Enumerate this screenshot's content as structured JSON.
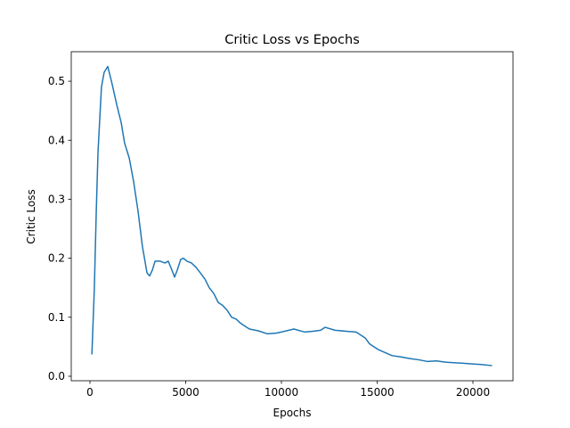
{
  "chart_data": {
    "type": "line",
    "title": "Critic Loss vs Epochs",
    "xlabel": "Epochs",
    "ylabel": "Critic Loss",
    "series": [
      {
        "color": "#1f77b4",
        "x": [
          100,
          230,
          330,
          420,
          600,
          740,
          930,
          1160,
          1400,
          1630,
          1810,
          2050,
          2280,
          2510,
          2740,
          2980,
          3120,
          3260,
          3400,
          3670,
          3910,
          4090,
          4280,
          4420,
          4560,
          4740,
          4880,
          5070,
          5300,
          5530,
          5770,
          6000,
          6230,
          6470,
          6700,
          6930,
          7160,
          7400,
          7630,
          7860,
          8090,
          8330,
          8790,
          9260,
          9720,
          10000,
          10650,
          11200,
          11600,
          12050,
          12280,
          12800,
          13440,
          13900,
          14370,
          14600,
          15070,
          15770,
          16200,
          16700,
          17150,
          17630,
          18100,
          18560,
          19000,
          19490,
          19950,
          20420,
          21000
        ],
        "values": [
          0.037,
          0.15,
          0.28,
          0.38,
          0.49,
          0.515,
          0.525,
          0.495,
          0.46,
          0.43,
          0.395,
          0.37,
          0.33,
          0.28,
          0.22,
          0.175,
          0.17,
          0.18,
          0.195,
          0.195,
          0.192,
          0.195,
          0.18,
          0.168,
          0.18,
          0.198,
          0.2,
          0.195,
          0.192,
          0.185,
          0.175,
          0.165,
          0.15,
          0.14,
          0.125,
          0.12,
          0.112,
          0.1,
          0.097,
          0.09,
          0.085,
          0.08,
          0.077,
          0.072,
          0.073,
          0.075,
          0.08,
          0.075,
          0.076,
          0.078,
          0.083,
          0.078,
          0.076,
          0.075,
          0.065,
          0.055,
          0.045,
          0.035,
          0.033,
          0.03,
          0.028,
          0.025,
          0.026,
          0.024,
          0.023,
          0.022,
          0.021,
          0.02,
          0.018
        ]
      }
    ],
    "xlim": [
      -977,
      22093
    ],
    "xticks": [
      0,
      5000,
      10000,
      15000,
      20000
    ],
    "ylim": [
      -0.0076,
      0.55
    ],
    "yticks": [
      0.0,
      0.1,
      0.2,
      0.3,
      0.4,
      0.5
    ]
  }
}
